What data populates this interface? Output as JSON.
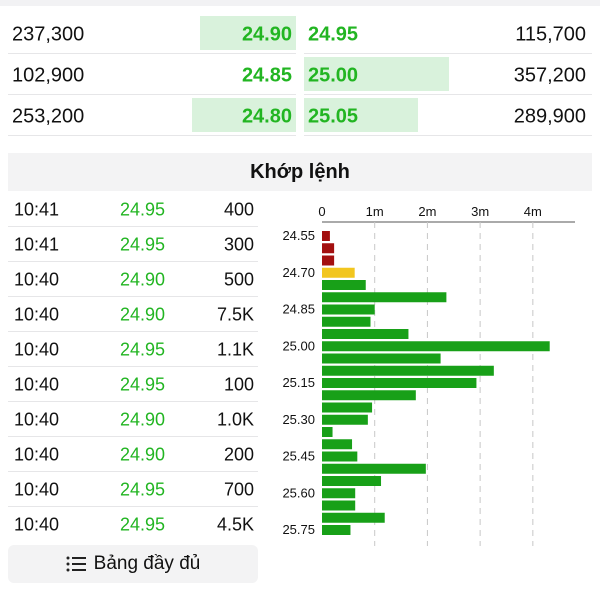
{
  "order_book": [
    {
      "bid_volume": "237,300",
      "bid_price": "24.90",
      "bid_fill": 0.48,
      "ask_price": "24.95",
      "ask_fill": 0.0,
      "ask_volume": "115,700"
    },
    {
      "bid_volume": "102,900",
      "bid_price": "24.85",
      "bid_fill": 0.0,
      "ask_price": "25.00",
      "ask_fill": 0.74,
      "ask_volume": "357,200"
    },
    {
      "bid_volume": "253,200",
      "bid_price": "24.80",
      "bid_fill": 0.52,
      "ask_price": "25.05",
      "ask_fill": 0.58,
      "ask_volume": "289,900"
    }
  ],
  "matched_section": {
    "title": "Khớp lệnh"
  },
  "trades": [
    {
      "time": "10:41",
      "price": "24.95",
      "volume": "400"
    },
    {
      "time": "10:41",
      "price": "24.95",
      "volume": "300"
    },
    {
      "time": "10:40",
      "price": "24.90",
      "volume": "500"
    },
    {
      "time": "10:40",
      "price": "24.90",
      "volume": "7.5K"
    },
    {
      "time": "10:40",
      "price": "24.95",
      "volume": "1.1K"
    },
    {
      "time": "10:40",
      "price": "24.95",
      "volume": "100"
    },
    {
      "time": "10:40",
      "price": "24.90",
      "volume": "1.0K"
    },
    {
      "time": "10:40",
      "price": "24.90",
      "volume": "200"
    },
    {
      "time": "10:40",
      "price": "24.95",
      "volume": "700"
    },
    {
      "time": "10:40",
      "price": "24.95",
      "volume": "4.5K"
    }
  ],
  "full_table_button": {
    "label": "Bảng đầy đủ",
    "icon": "list-icon"
  },
  "colors": {
    "green": "#22b522",
    "bar_green": "#18a018",
    "bar_red": "#a30f0f",
    "bar_yellow": "#f2c61f",
    "bid_bg": "#d9f2dc"
  },
  "chart_data": {
    "type": "bar",
    "orientation": "horizontal",
    "x_tick_labels": [
      "0",
      "1m",
      "2m",
      "3m",
      "4m"
    ],
    "x_ticks": [
      0,
      1000000,
      2000000,
      3000000,
      4000000
    ],
    "xlim": [
      0,
      4800000
    ],
    "y_tick_labels": [
      "24.55",
      "24.70",
      "24.85",
      "25.00",
      "25.15",
      "25.30",
      "25.45",
      "25.60",
      "25.75"
    ],
    "categories": [
      "24.55",
      "24.60",
      "24.65",
      "24.70",
      "24.75",
      "24.80",
      "24.85",
      "24.90",
      "24.95",
      "25.00",
      "25.05",
      "25.10",
      "25.15",
      "25.20",
      "25.25",
      "25.30",
      "25.35",
      "25.40",
      "25.45",
      "25.50",
      "25.55",
      "25.60",
      "25.65",
      "25.70",
      "25.75"
    ],
    "values": [
      150000,
      230000,
      230000,
      620000,
      830000,
      2360000,
      1000000,
      920000,
      1640000,
      4320000,
      2250000,
      3260000,
      2930000,
      1780000,
      950000,
      870000,
      200000,
      570000,
      670000,
      1970000,
      1120000,
      630000,
      630000,
      1190000,
      540000
    ],
    "bar_colors": [
      "red",
      "red",
      "red",
      "yellow",
      "green",
      "green",
      "green",
      "green",
      "green",
      "green",
      "green",
      "green",
      "green",
      "green",
      "green",
      "green",
      "green",
      "green",
      "green",
      "green",
      "green",
      "green",
      "green",
      "green",
      "green"
    ],
    "grid": "vertical-dashed"
  }
}
